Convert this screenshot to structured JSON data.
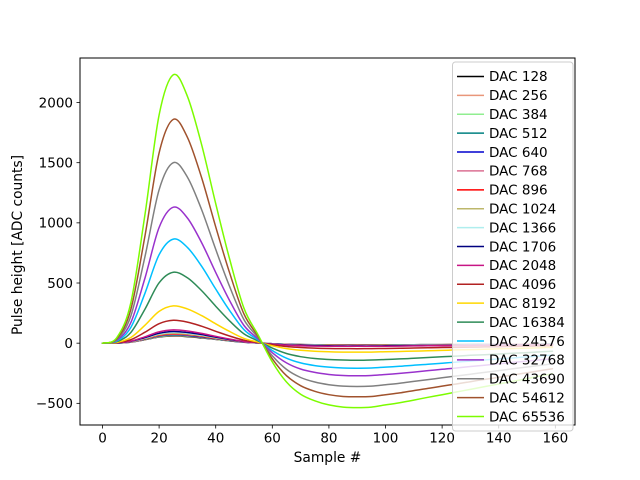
{
  "figure": {
    "background": "#ffffff",
    "frame_color": "#000000",
    "legend_border_color": "#cccccc",
    "legend_background": "#ffffff",
    "legend_opacity": 0.8
  },
  "chart_data": {
    "type": "line",
    "title": "",
    "xlabel": "Sample #",
    "ylabel": "Pulse height [ADC counts]",
    "xlim": [
      -7.95,
      166.95
    ],
    "ylim": [
      -680,
      2370
    ],
    "x_ticks": [
      0,
      20,
      40,
      60,
      80,
      100,
      120,
      140,
      160
    ],
    "x_tick_labels": [
      "0",
      "20",
      "40",
      "60",
      "80",
      "100",
      "120",
      "140",
      "160"
    ],
    "y_ticks": [
      -500,
      0,
      500,
      1000,
      1500,
      2000
    ],
    "y_tick_labels": [
      "−500",
      "0",
      "500",
      "1000",
      "1500",
      "2000"
    ],
    "grid": false,
    "legend_position": "upper right",
    "x_values": [
      0,
      5,
      10,
      15,
      20,
      25,
      30,
      35,
      40,
      45,
      50,
      55,
      60,
      65,
      70,
      75,
      80,
      85,
      90,
      95,
      100,
      105,
      110,
      115,
      120,
      125,
      130,
      135,
      140,
      145,
      150,
      155,
      159
    ],
    "series": [
      {
        "name": "DAC 128",
        "color": "#000000",
        "peak_value": 60,
        "values": [
          0,
          1,
          9,
          29,
          51,
          60,
          55,
          44,
          31,
          19,
          8,
          2,
          -4,
          -9,
          -11,
          -13,
          -14,
          -14,
          -14,
          -14,
          -14,
          -13,
          -13,
          -12,
          -12,
          -11,
          -10,
          -10,
          -9,
          -9,
          -8,
          -7,
          -7
        ]
      },
      {
        "name": "DAC 256",
        "color": "#e9967a",
        "peak_value": 63,
        "values": [
          0,
          1,
          9,
          30,
          54,
          63,
          58,
          47,
          33,
          20,
          8,
          2,
          -4,
          -9,
          -12,
          -14,
          -14,
          -15,
          -15,
          -15,
          -14,
          -14,
          -13,
          -13,
          -12,
          -11,
          -11,
          -10,
          -10,
          -9,
          -8,
          -8,
          -7
        ]
      },
      {
        "name": "DAC 384",
        "color": "#90ee90",
        "peak_value": 66,
        "values": [
          0,
          1,
          10,
          32,
          56,
          66,
          61,
          49,
          34,
          20,
          9,
          2,
          -5,
          -10,
          -13,
          -14,
          -15,
          -16,
          -16,
          -16,
          -15,
          -15,
          -14,
          -13,
          -13,
          -12,
          -11,
          -11,
          -10,
          -9,
          -9,
          -8,
          -8
        ]
      },
      {
        "name": "DAC 512",
        "color": "#008080",
        "peak_value": 69,
        "values": [
          0,
          1,
          10,
          33,
          59,
          69,
          63,
          51,
          36,
          21,
          9,
          2,
          -5,
          -10,
          -13,
          -15,
          -16,
          -16,
          -17,
          -16,
          -16,
          -15,
          -15,
          -14,
          -13,
          -13,
          -12,
          -11,
          -10,
          -10,
          -9,
          -8,
          -8
        ]
      },
      {
        "name": "DAC 640",
        "color": "#0000cd",
        "peak_value": 72,
        "values": [
          0,
          1,
          11,
          35,
          61,
          72,
          66,
          53,
          37,
          22,
          9,
          2,
          -5,
          -10,
          -14,
          -15,
          -17,
          -17,
          -17,
          -17,
          -17,
          -16,
          -15,
          -15,
          -14,
          -13,
          -12,
          -12,
          -11,
          -10,
          -10,
          -9,
          -8
        ]
      },
      {
        "name": "DAC 768",
        "color": "#db7093",
        "peak_value": 75,
        "values": [
          0,
          2,
          11,
          36,
          64,
          75,
          69,
          56,
          39,
          23,
          10,
          2,
          -5,
          -11,
          -14,
          -16,
          -17,
          -18,
          -18,
          -18,
          -17,
          -17,
          -16,
          -15,
          -14,
          -14,
          -13,
          -12,
          -11,
          -11,
          -10,
          -9,
          -9
        ]
      },
      {
        "name": "DAC 896",
        "color": "#ff0000",
        "peak_value": 79,
        "values": [
          0,
          2,
          12,
          38,
          67,
          79,
          73,
          58,
          41,
          24,
          10,
          2,
          -6,
          -11,
          -15,
          -17,
          -18,
          -19,
          -19,
          -19,
          -18,
          -18,
          -17,
          -16,
          -15,
          -14,
          -14,
          -13,
          -12,
          -11,
          -10,
          -10,
          -9
        ]
      },
      {
        "name": "DAC 1024",
        "color": "#bdb76b",
        "peak_value": 83,
        "values": [
          0,
          2,
          12,
          40,
          71,
          83,
          76,
          61,
          43,
          26,
          11,
          2,
          -6,
          -12,
          -16,
          -18,
          -19,
          -20,
          -20,
          -20,
          -19,
          -18,
          -18,
          -17,
          -16,
          -15,
          -14,
          -13,
          -13,
          -12,
          -11,
          -10,
          -9
        ]
      },
      {
        "name": "DAC 1366",
        "color": "#afeeee",
        "peak_value": 90,
        "values": [
          0,
          2,
          14,
          43,
          77,
          90,
          83,
          67,
          47,
          28,
          12,
          3,
          -6,
          -13,
          -17,
          -19,
          -21,
          -21,
          -22,
          -21,
          -21,
          -20,
          -19,
          -18,
          -17,
          -16,
          -15,
          -15,
          -14,
          -13,
          -12,
          -11,
          -10
        ]
      },
      {
        "name": "DAC 1706",
        "color": "#000080",
        "peak_value": 97,
        "values": [
          0,
          2,
          15,
          47,
          82,
          97,
          89,
          72,
          50,
          30,
          13,
          3,
          -7,
          -14,
          -18,
          -21,
          -22,
          -23,
          -23,
          -23,
          -22,
          -22,
          -21,
          -20,
          -19,
          -18,
          -17,
          -16,
          -15,
          -14,
          -13,
          -12,
          -11
        ]
      },
      {
        "name": "DAC 2048",
        "color": "#c71585",
        "peak_value": 110,
        "values": [
          0,
          2,
          17,
          53,
          94,
          110,
          101,
          81,
          57,
          34,
          14,
          3,
          -8,
          -16,
          -21,
          -24,
          -25,
          -26,
          -26,
          -26,
          -25,
          -24,
          -23,
          -22,
          -21,
          -20,
          -19,
          -18,
          -17,
          -16,
          -15,
          -13,
          -13
        ]
      },
      {
        "name": "DAC 4096",
        "color": "#b22222",
        "peak_value": 190,
        "values": [
          0,
          4,
          29,
          91,
          162,
          190,
          175,
          141,
          99,
          59,
          25,
          6,
          -13,
          -28,
          -36,
          -41,
          -44,
          -45,
          -46,
          -45,
          -44,
          -42,
          -40,
          -38,
          -36,
          -35,
          -33,
          -31,
          -29,
          -27,
          -25,
          -23,
          -22
        ]
      },
      {
        "name": "DAC 8192",
        "color": "#ffd700",
        "peak_value": 310,
        "values": [
          0,
          6,
          47,
          149,
          264,
          310,
          285,
          229,
          161,
          96,
          40,
          9,
          -22,
          -45,
          -59,
          -67,
          -71,
          -74,
          -74,
          -74,
          -71,
          -69,
          -66,
          -63,
          -60,
          -56,
          -53,
          -50,
          -47,
          -44,
          -41,
          -38,
          -35
        ]
      },
      {
        "name": "DAC 16384",
        "color": "#2e8b57",
        "peak_value": 590,
        "values": [
          0,
          12,
          89,
          283,
          502,
          590,
          543,
          437,
          307,
          183,
          77,
          18,
          -41,
          -86,
          -112,
          -127,
          -136,
          -140,
          -142,
          -140,
          -136,
          -131,
          -125,
          -119,
          -113,
          -107,
          -101,
          -96,
          -90,
          -84,
          -78,
          -72,
          -67
        ]
      },
      {
        "name": "DAC 24576",
        "color": "#00bfff",
        "peak_value": 865,
        "values": [
          0,
          17,
          130,
          415,
          735,
          865,
          796,
          640,
          450,
          268,
          112,
          26,
          -61,
          -125,
          -164,
          -186,
          -199,
          -206,
          -208,
          -206,
          -199,
          -192,
          -183,
          -175,
          -166,
          -157,
          -149,
          -140,
          -131,
          -123,
          -114,
          -106,
          -99
        ]
      },
      {
        "name": "DAC 32768",
        "color": "#9932cc",
        "peak_value": 1130,
        "values": [
          0,
          23,
          170,
          542,
          961,
          1130,
          1040,
          836,
          588,
          350,
          147,
          34,
          -79,
          -164,
          -215,
          -243,
          -260,
          -269,
          -271,
          -269,
          -260,
          -251,
          -240,
          -228,
          -217,
          -206,
          -194,
          -183,
          -172,
          -160,
          -149,
          -138,
          -129
        ]
      },
      {
        "name": "DAC 43690",
        "color": "#808080",
        "peak_value": 1500,
        "values": [
          0,
          30,
          225,
          720,
          1275,
          1500,
          1380,
          1110,
          780,
          465,
          195,
          45,
          -105,
          -218,
          -285,
          -323,
          -345,
          -357,
          -360,
          -357,
          -345,
          -333,
          -318,
          -303,
          -288,
          -273,
          -258,
          -243,
          -228,
          -213,
          -198,
          -183,
          -171
        ]
      },
      {
        "name": "DAC 54612",
        "color": "#a0522d",
        "peak_value": 1860,
        "values": [
          0,
          37,
          279,
          893,
          1581,
          1860,
          1711,
          1376,
          967,
          577,
          242,
          56,
          -130,
          -270,
          -353,
          -400,
          -428,
          -443,
          -446,
          -443,
          -428,
          -413,
          -394,
          -376,
          -357,
          -339,
          -320,
          -301,
          -283,
          -264,
          -246,
          -227,
          -212
        ]
      },
      {
        "name": "DAC 65536",
        "color": "#7cfc00",
        "peak_value": 2230,
        "values": [
          0,
          45,
          335,
          1070,
          1896,
          2230,
          2052,
          1650,
          1160,
          691,
          290,
          67,
          -156,
          -323,
          -424,
          -479,
          -513,
          -531,
          -535,
          -531,
          -513,
          -495,
          -473,
          -450,
          -428,
          -406,
          -384,
          -361,
          -339,
          -317,
          -294,
          -272,
          -254
        ]
      }
    ]
  }
}
